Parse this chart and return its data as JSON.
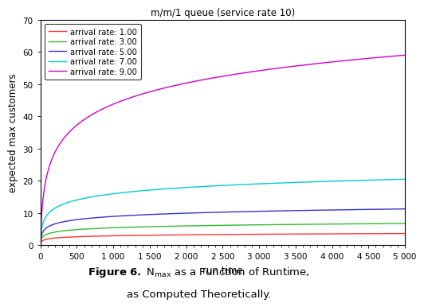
{
  "title": "m/m/1 queue (service rate 10)",
  "xlabel": "run time",
  "ylabel": "expected max customers",
  "xlim": [
    0,
    5000
  ],
  "ylim": [
    0,
    70
  ],
  "xticks": [
    0,
    500,
    1000,
    1500,
    2000,
    2500,
    3000,
    3500,
    4000,
    4500,
    5000
  ],
  "yticks": [
    0,
    10,
    20,
    30,
    40,
    50,
    60,
    70
  ],
  "service_rate": 10,
  "arrival_rates": [
    1.0,
    3.0,
    5.0,
    7.0,
    9.0
  ],
  "line_colors": [
    "#ff3333",
    "#33bb33",
    "#3333cc",
    "#00cccc",
    "#cc00cc"
  ],
  "figure_width": 5.38,
  "figure_height": 3.94,
  "dpi": 100,
  "xtick_labels": [
    "0",
    "500",
    "1 000",
    "1 500",
    "2 000",
    "2 500",
    "3 000",
    "3 500",
    "4 000",
    "4 500",
    "5 000"
  ]
}
